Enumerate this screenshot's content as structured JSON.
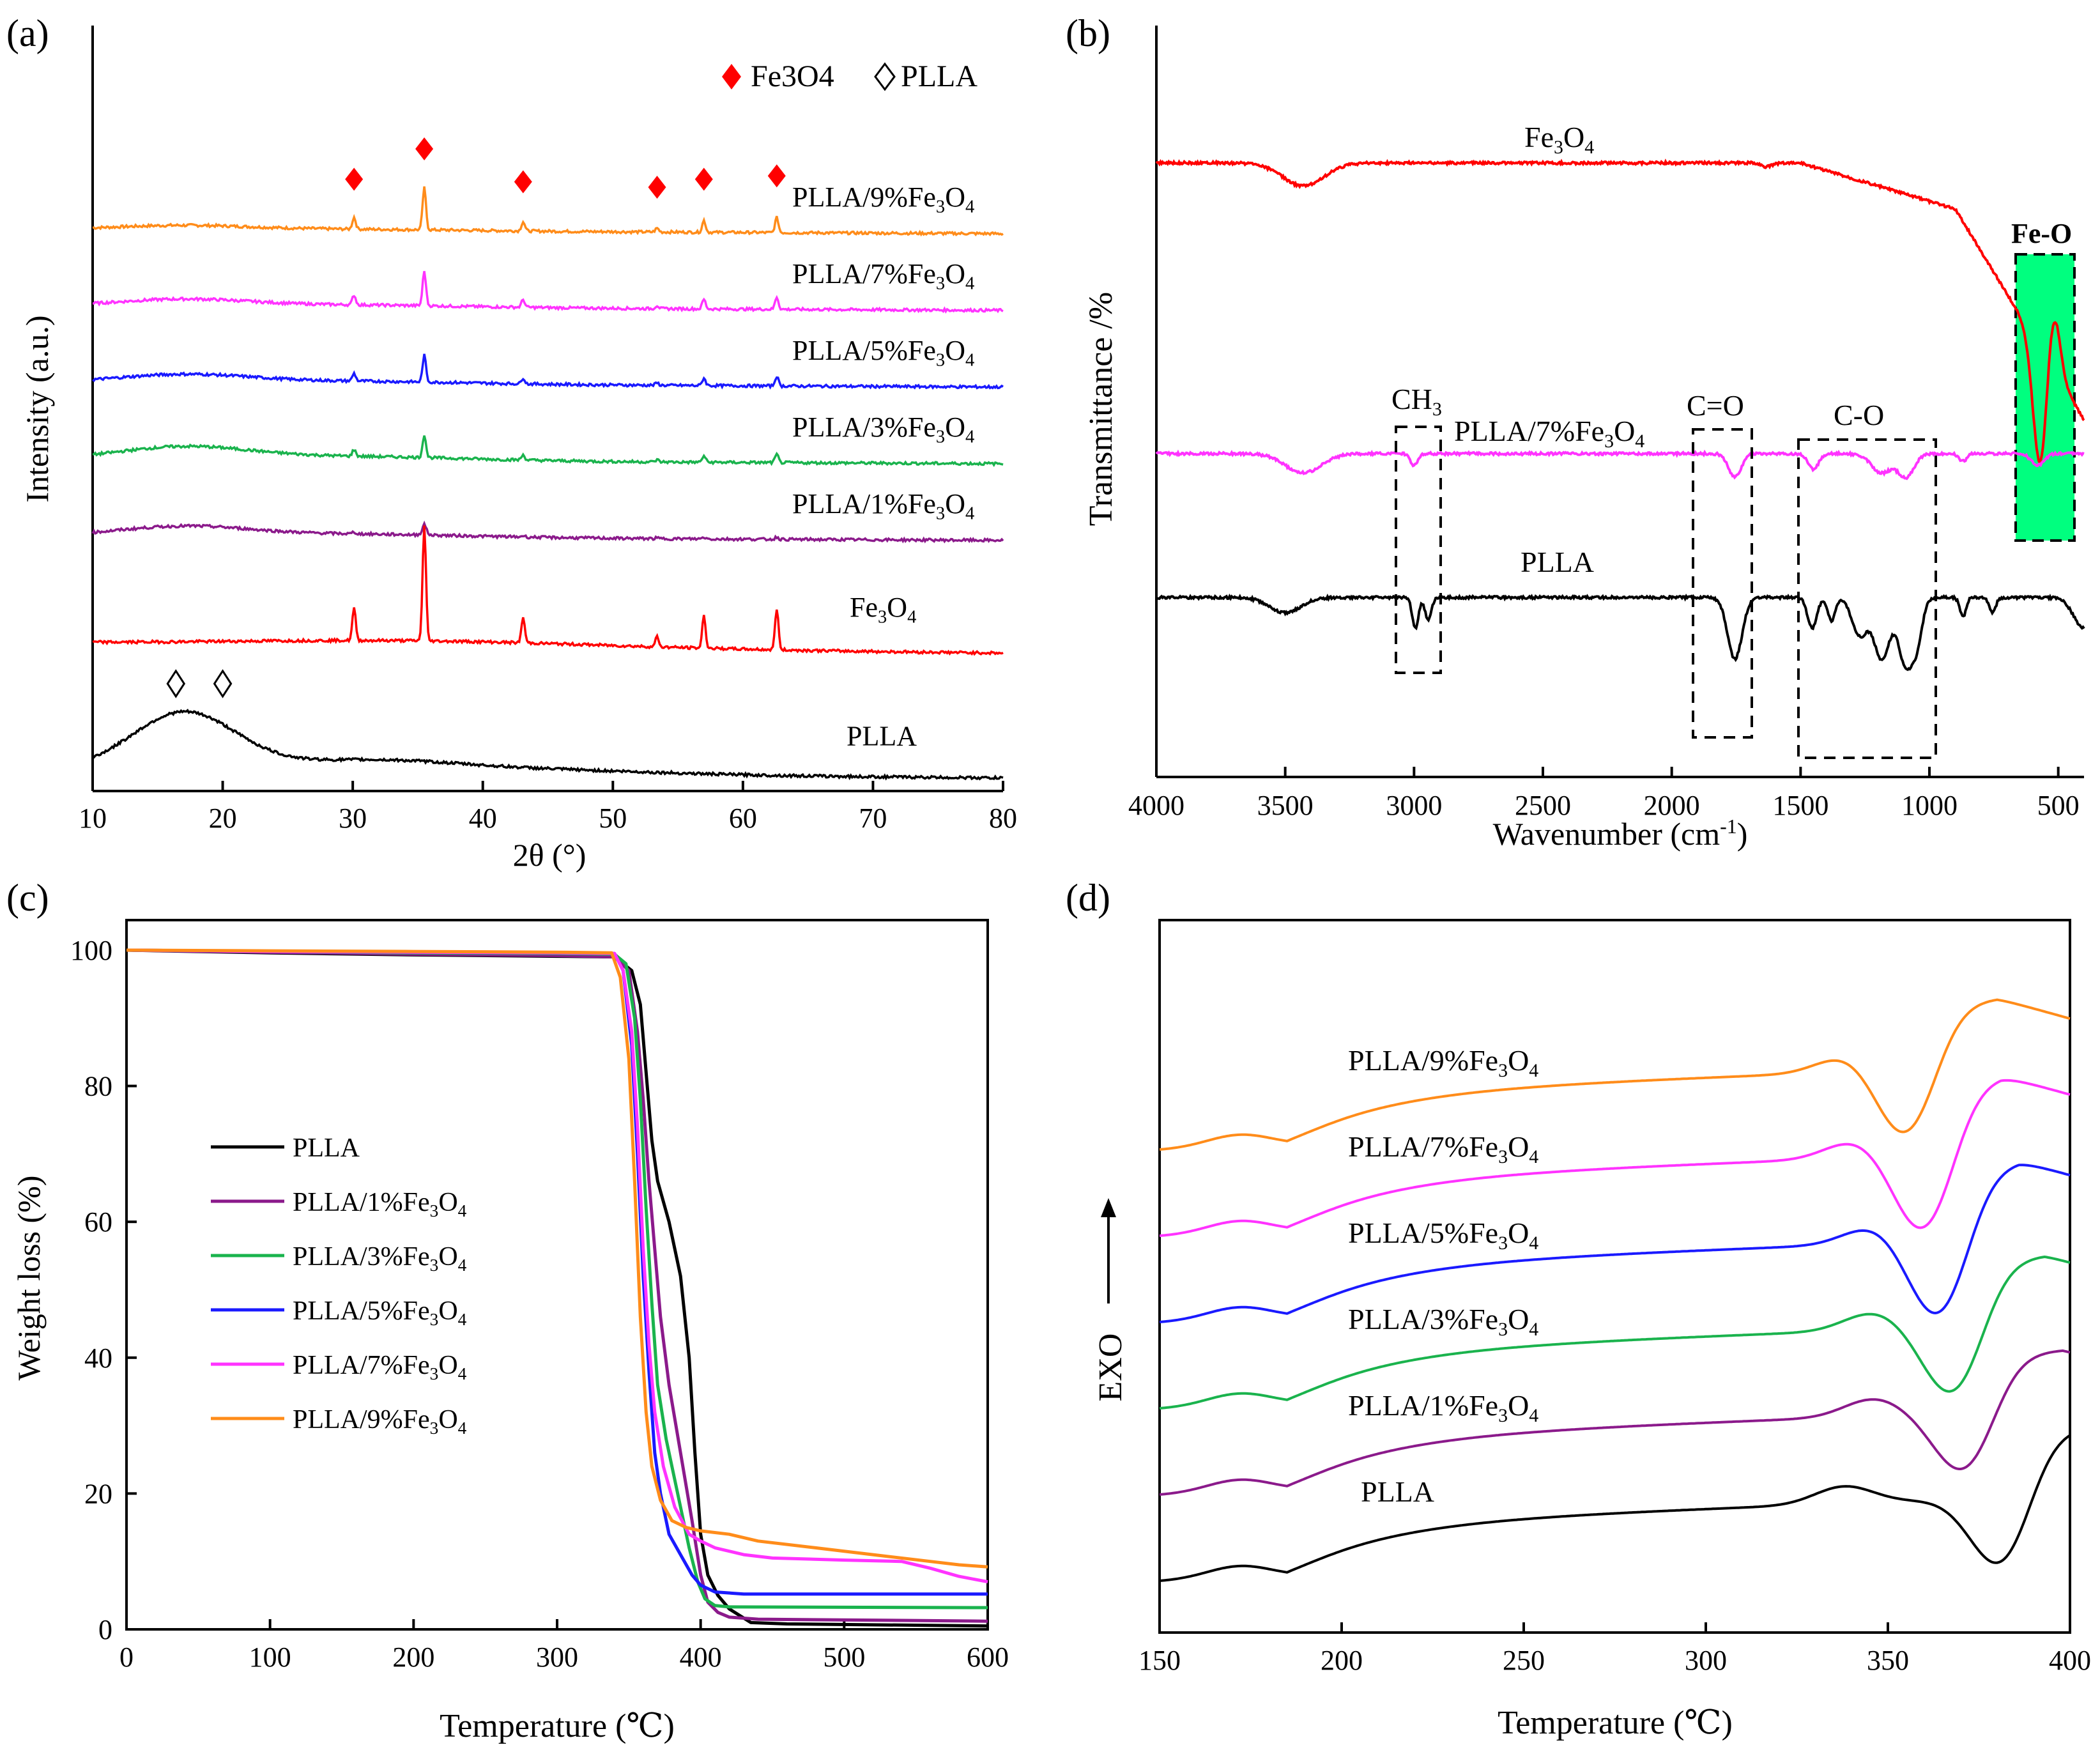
{
  "figure": {
    "panel_labels": [
      "(a)",
      "(b)",
      "(c)",
      "(d)"
    ],
    "sub_small": "3",
    "sub_small_4": "4",
    "sub_minus1": "-1"
  },
  "chart_data": [
    {
      "id": "a",
      "type": "line",
      "title": "",
      "xlabel": "2θ (°)",
      "ylabel": "Intensity (a.u.)",
      "xlim": [
        10,
        80
      ],
      "xticks": [
        10,
        20,
        30,
        40,
        50,
        60,
        70,
        80
      ],
      "legend": [
        {
          "symbol": "filled-diamond",
          "label": "Fe3O4",
          "color": "#ff0000"
        },
        {
          "symbol": "open-diamond",
          "label": "PLLA",
          "color": "#000000"
        }
      ],
      "fe3o4_peak_positions": [
        30.1,
        35.5,
        43.1,
        53.4,
        57.0,
        62.6
      ],
      "plla_peak_positions": [
        16.4,
        20.0
      ],
      "series": [
        {
          "name": "PLLA/9%Fe3O4",
          "color": "#ff8c1a",
          "offset": 7.0,
          "amorphous": 0.15,
          "peak_scale": 0.55
        },
        {
          "name": "PLLA/7%Fe3O4",
          "color": "#ff33ff",
          "offset": 6.0,
          "amorphous": 0.25,
          "peak_scale": 0.45
        },
        {
          "name": "PLLA/5%Fe3O4",
          "color": "#1a1aff",
          "offset": 5.0,
          "amorphous": 0.3,
          "peak_scale": 0.35
        },
        {
          "name": "PLLA/3%Fe3O4",
          "color": "#1ab34d",
          "offset": 4.0,
          "amorphous": 0.45,
          "peak_scale": 0.3
        },
        {
          "name": "PLLA/1%Fe3O4",
          "color": "#8b1a8b",
          "offset": 3.0,
          "amorphous": 0.35,
          "peak_scale": 0.08
        },
        {
          "name": "Fe3O4",
          "color": "#ff0000",
          "offset": 1.55,
          "amorphous": 0.0,
          "peak_scale": 1.5
        },
        {
          "name": "PLLA",
          "color": "#000000",
          "offset": 0.0,
          "amorphous": 0.9,
          "peak_scale": 0.0
        }
      ]
    },
    {
      "id": "b",
      "type": "line",
      "title": "",
      "xlabel": "Wavenumber (cm-1)",
      "ylabel": "Transmittance /%",
      "xlim": [
        4000,
        400
      ],
      "xticks": [
        4000,
        3500,
        3000,
        2500,
        2000,
        1500,
        1000,
        500
      ],
      "annotations": [
        "CH3",
        "C=O",
        "C-O",
        "Fe-O"
      ],
      "series": [
        {
          "name": "Fe3O4",
          "color": "#ff0000"
        },
        {
          "name": "PLLA/7%Fe3O4",
          "color": "#ff33ff"
        },
        {
          "name": "PLLA",
          "color": "#000000"
        }
      ]
    },
    {
      "id": "c",
      "type": "line",
      "title": "",
      "xlabel": "Temperature (℃)",
      "ylabel": "Weight loss (%)",
      "xlim": [
        0,
        600
      ],
      "ylim": [
        0,
        100
      ],
      "xticks": [
        0,
        100,
        200,
        300,
        400,
        500,
        600
      ],
      "yticks": [
        0,
        20,
        40,
        60,
        80,
        100
      ],
      "legend_position": "center-left",
      "series": [
        {
          "name": "PLLA",
          "color": "#000000",
          "x": [
            0,
            100,
            200,
            300,
            340,
            352,
            358,
            362,
            366,
            370,
            378,
            386,
            392,
            396,
            400,
            405,
            412,
            420,
            435,
            460,
            600
          ],
          "y": [
            100,
            99.6,
            99.3,
            99.1,
            99.0,
            97,
            92,
            82,
            72,
            66,
            60,
            52,
            40,
            26,
            14,
            8,
            5,
            3,
            1,
            0.8,
            0.5
          ]
        },
        {
          "name": "PLLA/1%Fe3O4",
          "color": "#8b1a8b",
          "x": [
            0,
            100,
            200,
            300,
            340,
            350,
            356,
            360,
            364,
            368,
            372,
            378,
            386,
            394,
            400,
            405,
            412,
            420,
            440,
            600
          ],
          "y": [
            100,
            99.7,
            99.4,
            99.2,
            99.0,
            97,
            88,
            78,
            66,
            56,
            46,
            36,
            26,
            16,
            8,
            4,
            2.5,
            1.8,
            1.5,
            1.2
          ]
        },
        {
          "name": "PLLA/3%Fe3O4",
          "color": "#1ab34d",
          "x": [
            0,
            100,
            200,
            300,
            340,
            348,
            354,
            358,
            362,
            366,
            370,
            376,
            384,
            392,
            398,
            403,
            410,
            420,
            600
          ],
          "y": [
            100,
            99.8,
            99.6,
            99.5,
            99.4,
            98,
            90,
            78,
            62,
            48,
            36,
            28,
            20,
            12,
            7,
            4.5,
            3.5,
            3.3,
            3.2
          ]
        },
        {
          "name": "PLLA/5%Fe3O4",
          "color": "#1a1aff",
          "x": [
            0,
            100,
            200,
            300,
            340,
            346,
            352,
            356,
            360,
            364,
            368,
            372,
            378,
            386,
            394,
            400,
            410,
            430,
            600
          ],
          "y": [
            100,
            99.8,
            99.7,
            99.6,
            99.5,
            97,
            86,
            70,
            52,
            38,
            26,
            20,
            14,
            11,
            8,
            6.5,
            5.5,
            5.2,
            5.2
          ]
        },
        {
          "name": "PLLA/7%Fe3O4",
          "color": "#ff33ff",
          "x": [
            0,
            100,
            200,
            300,
            340,
            346,
            352,
            356,
            360,
            364,
            368,
            374,
            382,
            392,
            400,
            410,
            430,
            450,
            500,
            540,
            560,
            580,
            600
          ],
          "y": [
            100,
            99.8,
            99.7,
            99.6,
            99.5,
            97,
            88,
            74,
            56,
            42,
            32,
            24,
            18,
            14,
            13,
            12,
            11,
            10.5,
            10.2,
            10,
            9,
            7.8,
            7
          ]
        },
        {
          "name": "PLLA/9%Fe3O4",
          "color": "#ff8c1a",
          "x": [
            0,
            100,
            200,
            300,
            338,
            344,
            350,
            354,
            358,
            362,
            366,
            372,
            380,
            390,
            400,
            420,
            440,
            480,
            520,
            560,
            580,
            600
          ],
          "y": [
            100,
            99.9,
            99.8,
            99.7,
            99.6,
            96,
            84,
            66,
            46,
            32,
            24,
            19,
            16,
            15,
            14.5,
            14,
            13,
            12,
            11,
            10,
            9.5,
            9.2
          ]
        }
      ]
    },
    {
      "id": "d",
      "type": "line",
      "title": "",
      "xlabel": "Temperature (℃)",
      "ylabel": "EXO",
      "xlim": [
        150,
        400
      ],
      "xticks": [
        150,
        200,
        250,
        300,
        350,
        400
      ],
      "series": [
        {
          "name": "PLLA/9%Fe3O4",
          "color": "#ff8c1a",
          "offset": 5,
          "cold_peak": 339,
          "melt_min": 355,
          "recover": 380,
          "depth": 0.75
        },
        {
          "name": "PLLA/7%Fe3O4",
          "color": "#ff33ff",
          "offset": 4,
          "cold_peak": 341,
          "melt_min": 360,
          "recover": 381,
          "depth": 0.85
        },
        {
          "name": "PLLA/5%Fe3O4",
          "color": "#1a1aff",
          "offset": 3,
          "cold_peak": 346,
          "melt_min": 364,
          "recover": 386,
          "depth": 0.85
        },
        {
          "name": "PLLA/3%Fe3O4",
          "color": "#1ab34d",
          "offset": 2,
          "cold_peak": 346,
          "melt_min": 368,
          "recover": 393,
          "depth": 0.75
        },
        {
          "name": "PLLA/1%Fe3O4",
          "color": "#8b1a8b",
          "offset": 1,
          "cold_peak": 346,
          "melt_min": 371,
          "recover": 398,
          "depth": 0.65
        },
        {
          "name": "PLLA",
          "color": "#000000",
          "offset": 0,
          "cold_peak": 338,
          "melt_min": 381,
          "recover": 402,
          "depth": 0.75
        }
      ]
    }
  ]
}
